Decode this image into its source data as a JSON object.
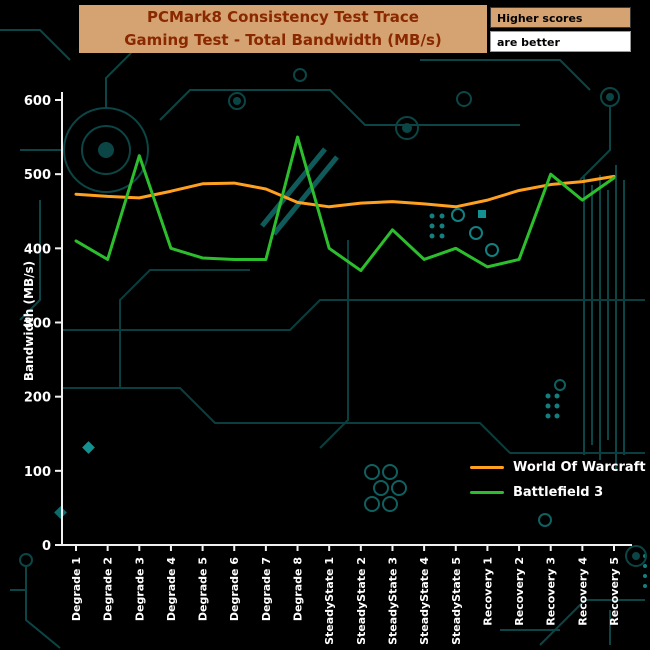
{
  "header": {
    "title_line1": "PCMark8 Consistency Test Trace",
    "title_line2": "Gaming Test - Total Bandwidth (MB/s)"
  },
  "badges": {
    "top": "Higher scores",
    "bottom": "are better"
  },
  "colors": {
    "background": "#000000",
    "banner_bg": "#D5A272",
    "banner_text": "#8A2800",
    "badge_top_bg": "#D5A272",
    "badge_top_text": "#000000",
    "badge_bottom_bg": "#FFFFFF",
    "badge_bottom_text": "#000000",
    "axis": "#F0F0F0",
    "tick_label": "#FFFFFF",
    "circuit": "#0C4545"
  },
  "chart_data": {
    "type": "line",
    "title": "PCMark8 Consistency Test Trace — Gaming Test - Total Bandwidth (MB/s)",
    "ylabel": "Bandwidth (MB/s)",
    "xlabel": "",
    "ylim": [
      0,
      600
    ],
    "yticks": [
      0,
      100,
      200,
      300,
      400,
      500,
      600
    ],
    "grid": false,
    "legend_position": "inside-bottom-right",
    "categories": [
      "Degrade 1",
      "Degrade 2",
      "Degrade 3",
      "Degrade 4",
      "Degrade 5",
      "Degrade 6",
      "Degrade 7",
      "Degrade 8",
      "SteadyState 1",
      "SteadyState 2",
      "SteadyState 3",
      "SteadyState 4",
      "SteadyState 5",
      "Recovery 1",
      "Recovery 2",
      "Recovery 3",
      "Recovery 4",
      "Recovery 5"
    ],
    "series": [
      {
        "name": "World Of Warcraft",
        "color": "#FFA01E",
        "values": [
          473,
          470,
          468,
          477,
          487,
          488,
          480,
          462,
          456,
          461,
          463,
          460,
          456,
          465,
          478,
          486,
          490,
          497
        ]
      },
      {
        "name": "Battlefield 3",
        "color": "#2CBE2C",
        "values": [
          410,
          385,
          525,
          400,
          387,
          385,
          385,
          550,
          400,
          370,
          425,
          385,
          400,
          375,
          385,
          500,
          465,
          495
        ]
      }
    ]
  }
}
